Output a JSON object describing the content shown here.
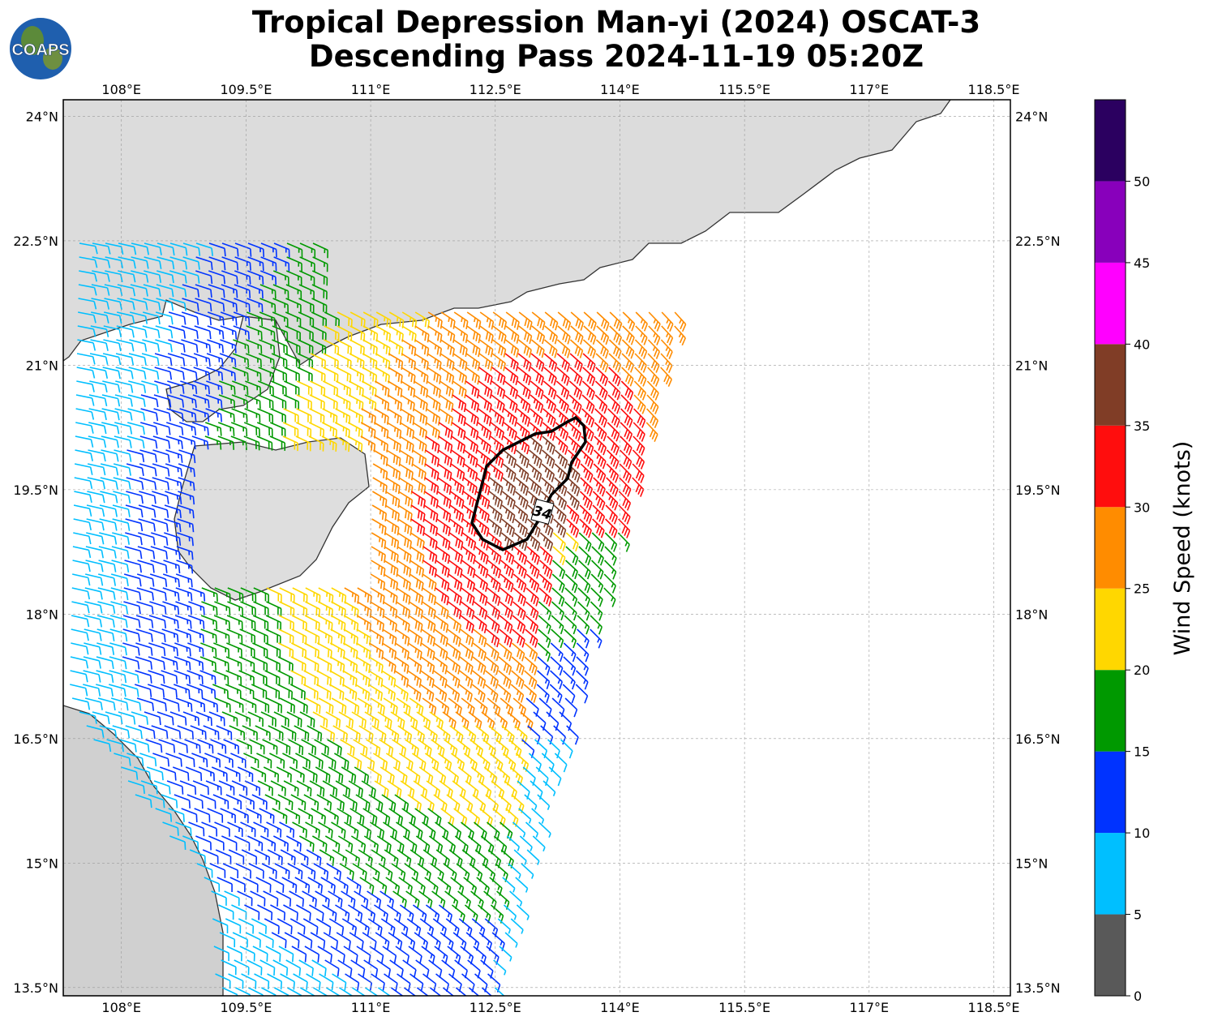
{
  "logo": {
    "text": "COAPS",
    "icon": "globe-logo-icon"
  },
  "title": {
    "line1": "Tropical Depression Man-yi (2024) OSCAT-3",
    "line2": "Descending Pass 2024-11-19 05:20Z"
  },
  "map": {
    "lon_range": [
      107.3,
      118.7
    ],
    "lat_range": [
      13.4,
      24.2
    ],
    "lon_ticks": [
      "108°E",
      "109.5°E",
      "111°E",
      "112.5°E",
      "114°E",
      "115.5°E",
      "117°E",
      "118.5°E"
    ],
    "lon_values": [
      108,
      109.5,
      111,
      112.5,
      114,
      115.5,
      117,
      118.5
    ],
    "lat_ticks": [
      "24°N",
      "22.5°N",
      "21°N",
      "19.5°N",
      "18°N",
      "16.5°N",
      "15°N",
      "13.5°N"
    ],
    "lat_values": [
      24,
      22.5,
      21,
      19.5,
      18,
      16.5,
      15,
      13.5
    ],
    "gridlines": true,
    "contour_label": "34",
    "contour_color": "#000000",
    "land_color": "#d9d9d9",
    "coast_color": "#333333"
  },
  "colorbar": {
    "label": "Wind Speed (knots)",
    "ticks": [
      "0",
      "5",
      "10",
      "15",
      "20",
      "25",
      "30",
      "35",
      "40",
      "45",
      "50"
    ],
    "bins": [
      {
        "from": 0,
        "to": 5,
        "color": "#595959"
      },
      {
        "from": 5,
        "to": 10,
        "color": "#00bfff"
      },
      {
        "from": 10,
        "to": 15,
        "color": "#0033ff"
      },
      {
        "from": 15,
        "to": 20,
        "color": "#009900"
      },
      {
        "from": 20,
        "to": 25,
        "color": "#ffd700"
      },
      {
        "from": 25,
        "to": 30,
        "color": "#ff8c00"
      },
      {
        "from": 30,
        "to": 35,
        "color": "#ff0d0d"
      },
      {
        "from": 35,
        "to": 40,
        "color": "#803d26"
      },
      {
        "from": 40,
        "to": 45,
        "color": "#ff00ff"
      },
      {
        "from": 45,
        "to": 50,
        "color": "#8800bb"
      },
      {
        "from": 50,
        "to": 55,
        "color": "#2b0060"
      }
    ]
  }
}
